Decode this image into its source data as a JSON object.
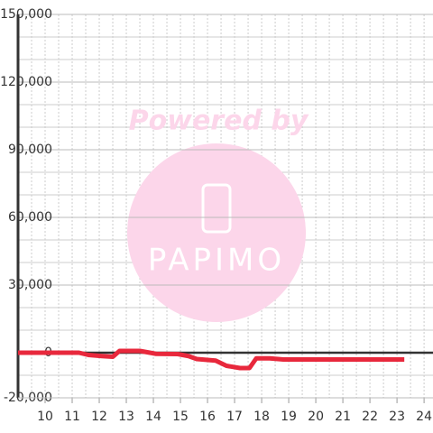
{
  "chart_data": {
    "type": "line",
    "watermark": {
      "text": "Powered by",
      "logo": "PAPIMO"
    },
    "x": [
      9,
      11.25,
      11.6,
      12.1,
      12.5,
      12.75,
      13.5,
      14.1,
      14.9,
      15.3,
      15.6,
      16.3,
      16.7,
      17.2,
      17.55,
      17.8,
      18.3,
      18.8,
      23.27
    ],
    "series": [
      {
        "color": "#e8283c",
        "values": [
          0,
          0,
          -1000,
          -1500,
          -1800,
          800,
          800,
          -500,
          -600,
          -1500,
          -2800,
          -3500,
          -5800,
          -6800,
          -6800,
          -2500,
          -2500,
          -3000,
          -3000
        ]
      }
    ],
    "xlim": [
      9,
      24.33
    ],
    "xticks": [
      10,
      11,
      12,
      13,
      14,
      15,
      16,
      17,
      18,
      19,
      20,
      21,
      22,
      23,
      24
    ],
    "ylim": [
      -20000,
      150000
    ],
    "yticks": [
      {
        "value": -20000,
        "label": "-20,000"
      },
      0,
      {
        "value": 30000,
        "label": "30,000"
      },
      {
        "value": 60000,
        "label": "60,000"
      },
      {
        "value": 90000,
        "label": "90,000"
      },
      {
        "value": 120000,
        "label": "120,000"
      },
      {
        "value": 150000,
        "label": "150,000"
      }
    ],
    "grid": true
  }
}
